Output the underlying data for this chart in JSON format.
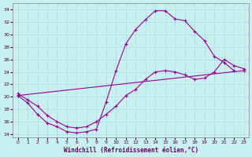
{
  "xlabel": "Windchill (Refroidissement éolien,°C)",
  "background_color": "#c8f0f0",
  "line_color": "#990099",
  "grid_color": "#aadddd",
  "xlim": [
    -0.5,
    23.5
  ],
  "ylim": [
    13.5,
    35
  ],
  "xticks": [
    0,
    1,
    2,
    3,
    4,
    5,
    6,
    7,
    8,
    9,
    10,
    11,
    12,
    13,
    14,
    15,
    16,
    17,
    18,
    19,
    20,
    21,
    22,
    23
  ],
  "yticks": [
    14,
    16,
    18,
    20,
    22,
    24,
    26,
    28,
    30,
    32,
    34
  ],
  "line1_x": [
    0,
    1,
    2,
    3,
    4,
    5,
    6,
    7,
    8,
    9,
    10,
    11,
    12,
    13,
    14,
    15,
    16,
    17,
    18,
    19,
    20,
    21,
    22
  ],
  "line1_y": [
    20.2,
    19.0,
    17.2,
    15.8,
    15.2,
    14.4,
    14.2,
    14.4,
    14.8,
    19.2,
    24.2,
    28.5,
    30.8,
    32.4,
    33.8,
    33.8,
    32.5,
    32.2,
    30.5,
    29.0,
    26.5,
    25.5,
    24.2
  ],
  "line2_x": [
    0,
    1,
    2,
    3,
    4,
    5,
    6,
    7,
    8,
    9,
    10,
    11,
    12,
    13,
    14,
    15,
    16,
    17,
    18,
    19,
    20,
    21,
    22,
    23
  ],
  "line2_y": [
    20.5,
    19.5,
    18.5,
    17.0,
    16.0,
    15.2,
    15.0,
    15.2,
    16.0,
    17.2,
    18.5,
    20.2,
    21.2,
    22.8,
    24.0,
    24.2,
    24.0,
    23.5,
    22.8,
    23.0,
    24.0,
    26.0,
    25.0,
    24.5
  ],
  "line3_x": [
    0,
    23
  ],
  "line3_y": [
    20.2,
    24.2
  ]
}
